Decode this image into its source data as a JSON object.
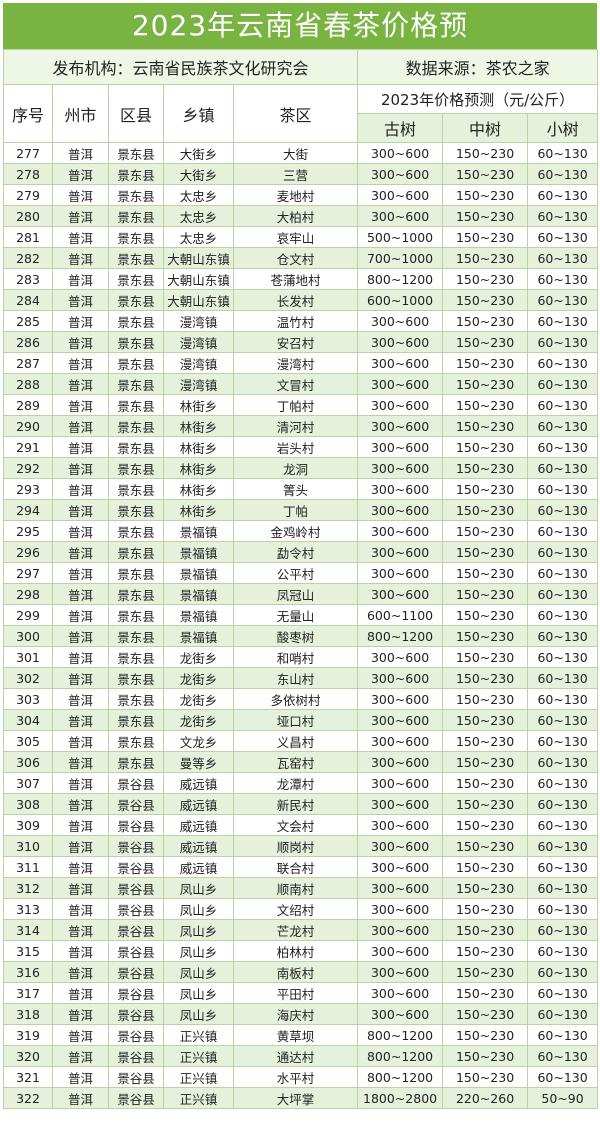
{
  "title": "2023年云南省春茶价格预",
  "publisher": "发布机构：云南省民族茶文化研究会",
  "source": "数据来源：茶农之家",
  "headers": {
    "no": "序号",
    "city": "州市",
    "county": "区县",
    "town": "乡镇",
    "area": "茶区",
    "price_group": "2023年价格预测（元/公斤）",
    "old": "古树",
    "mid": "中树",
    "small": "小树"
  },
  "colors": {
    "title_bg": "#79b443",
    "alt_row": "#e6f1dc"
  },
  "rows": [
    [
      "277",
      "普洱",
      "景东县",
      "大街乡",
      "大街",
      "300~600",
      "150~230",
      "60~130"
    ],
    [
      "278",
      "普洱",
      "景东县",
      "大街乡",
      "三营",
      "300~600",
      "150~230",
      "60~130"
    ],
    [
      "279",
      "普洱",
      "景东县",
      "太忠乡",
      "麦地村",
      "300~600",
      "150~230",
      "60~130"
    ],
    [
      "280",
      "普洱",
      "景东县",
      "太忠乡",
      "大柏村",
      "300~600",
      "150~230",
      "60~130"
    ],
    [
      "281",
      "普洱",
      "景东县",
      "太忠乡",
      "哀牢山",
      "500~1000",
      "150~230",
      "60~130"
    ],
    [
      "282",
      "普洱",
      "景东县",
      "大朝山东镇",
      "仓文村",
      "700~1000",
      "150~230",
      "60~130"
    ],
    [
      "283",
      "普洱",
      "景东县",
      "大朝山东镇",
      "苍蒲地村",
      "800~1200",
      "150~230",
      "60~130"
    ],
    [
      "284",
      "普洱",
      "景东县",
      "大朝山东镇",
      "长发村",
      "600~1000",
      "150~230",
      "60~130"
    ],
    [
      "285",
      "普洱",
      "景东县",
      "漫湾镇",
      "温竹村",
      "300~600",
      "150~230",
      "60~130"
    ],
    [
      "286",
      "普洱",
      "景东县",
      "漫湾镇",
      "安召村",
      "300~600",
      "150~230",
      "60~130"
    ],
    [
      "287",
      "普洱",
      "景东县",
      "漫湾镇",
      "漫湾村",
      "300~600",
      "150~230",
      "60~130"
    ],
    [
      "288",
      "普洱",
      "景东县",
      "漫湾镇",
      "文冒村",
      "300~600",
      "150~230",
      "60~130"
    ],
    [
      "289",
      "普洱",
      "景东县",
      "林街乡",
      "丁帕村",
      "300~600",
      "150~230",
      "60~130"
    ],
    [
      "290",
      "普洱",
      "景东县",
      "林街乡",
      "清河村",
      "300~600",
      "150~230",
      "60~130"
    ],
    [
      "291",
      "普洱",
      "景东县",
      "林街乡",
      "岩头村",
      "300~600",
      "150~230",
      "60~130"
    ],
    [
      "292",
      "普洱",
      "景东县",
      "林街乡",
      "龙洞",
      "300~600",
      "150~230",
      "60~130"
    ],
    [
      "293",
      "普洱",
      "景东县",
      "林街乡",
      "箐头",
      "300~600",
      "150~230",
      "60~130"
    ],
    [
      "294",
      "普洱",
      "景东县",
      "林街乡",
      "丁帕",
      "300~600",
      "150~230",
      "60~130"
    ],
    [
      "295",
      "普洱",
      "景东县",
      "景福镇",
      "金鸡岭村",
      "300~600",
      "150~230",
      "60~130"
    ],
    [
      "296",
      "普洱",
      "景东县",
      "景福镇",
      "勐令村",
      "300~600",
      "150~230",
      "60~130"
    ],
    [
      "297",
      "普洱",
      "景东县",
      "景福镇",
      "公平村",
      "300~600",
      "150~230",
      "60~130"
    ],
    [
      "298",
      "普洱",
      "景东县",
      "景福镇",
      "凤冠山",
      "300~600",
      "150~230",
      "60~130"
    ],
    [
      "299",
      "普洱",
      "景东县",
      "景福镇",
      "无量山",
      "600~1100",
      "150~230",
      "60~130"
    ],
    [
      "300",
      "普洱",
      "景东县",
      "景福镇",
      "酸枣树",
      "800~1200",
      "150~230",
      "60~130"
    ],
    [
      "301",
      "普洱",
      "景东县",
      "龙街乡",
      "和哨村",
      "300~600",
      "150~230",
      "60~130"
    ],
    [
      "302",
      "普洱",
      "景东县",
      "龙街乡",
      "东山村",
      "300~600",
      "150~230",
      "60~130"
    ],
    [
      "303",
      "普洱",
      "景东县",
      "龙街乡",
      "多依树村",
      "300~600",
      "150~230",
      "60~130"
    ],
    [
      "304",
      "普洱",
      "景东县",
      "龙街乡",
      "垭口村",
      "300~600",
      "150~230",
      "60~130"
    ],
    [
      "305",
      "普洱",
      "景东县",
      "文龙乡",
      "义昌村",
      "300~600",
      "150~230",
      "60~130"
    ],
    [
      "306",
      "普洱",
      "景东县",
      "曼等乡",
      "瓦窑村",
      "300~600",
      "150~230",
      "60~130"
    ],
    [
      "307",
      "普洱",
      "景谷县",
      "威远镇",
      "龙潭村",
      "300~600",
      "150~230",
      "60~130"
    ],
    [
      "308",
      "普洱",
      "景谷县",
      "威远镇",
      "新民村",
      "300~600",
      "150~230",
      "60~130"
    ],
    [
      "309",
      "普洱",
      "景谷县",
      "威远镇",
      "文会村",
      "300~600",
      "150~230",
      "60~130"
    ],
    [
      "310",
      "普洱",
      "景谷县",
      "威远镇",
      "顺岗村",
      "300~600",
      "150~230",
      "60~130"
    ],
    [
      "311",
      "普洱",
      "景谷县",
      "威远镇",
      "联合村",
      "300~600",
      "150~230",
      "60~130"
    ],
    [
      "312",
      "普洱",
      "景谷县",
      "凤山乡",
      "顺南村",
      "300~600",
      "150~230",
      "60~130"
    ],
    [
      "313",
      "普洱",
      "景谷县",
      "凤山乡",
      "文绍村",
      "300~600",
      "150~230",
      "60~130"
    ],
    [
      "314",
      "普洱",
      "景谷县",
      "凤山乡",
      "芒龙村",
      "300~600",
      "150~230",
      "60~130"
    ],
    [
      "315",
      "普洱",
      "景谷县",
      "凤山乡",
      "柏林村",
      "300~600",
      "150~230",
      "60~130"
    ],
    [
      "316",
      "普洱",
      "景谷县",
      "凤山乡",
      "南板村",
      "300~600",
      "150~230",
      "60~130"
    ],
    [
      "317",
      "普洱",
      "景谷县",
      "凤山乡",
      "平田村",
      "300~600",
      "150~230",
      "60~130"
    ],
    [
      "318",
      "普洱",
      "景谷县",
      "凤山乡",
      "海庆村",
      "300~600",
      "150~230",
      "60~130"
    ],
    [
      "319",
      "普洱",
      "景谷县",
      "正兴镇",
      "黄草坝",
      "800~1200",
      "150~230",
      "60~130"
    ],
    [
      "320",
      "普洱",
      "景谷县",
      "正兴镇",
      "通达村",
      "800~1200",
      "150~230",
      "60~130"
    ],
    [
      "321",
      "普洱",
      "景谷县",
      "正兴镇",
      "水平村",
      "800~1200",
      "150~230",
      "60~130"
    ],
    [
      "322",
      "普洱",
      "景谷县",
      "正兴镇",
      "大坪掌",
      "1800~2800",
      "220~260",
      "50~90"
    ]
  ]
}
